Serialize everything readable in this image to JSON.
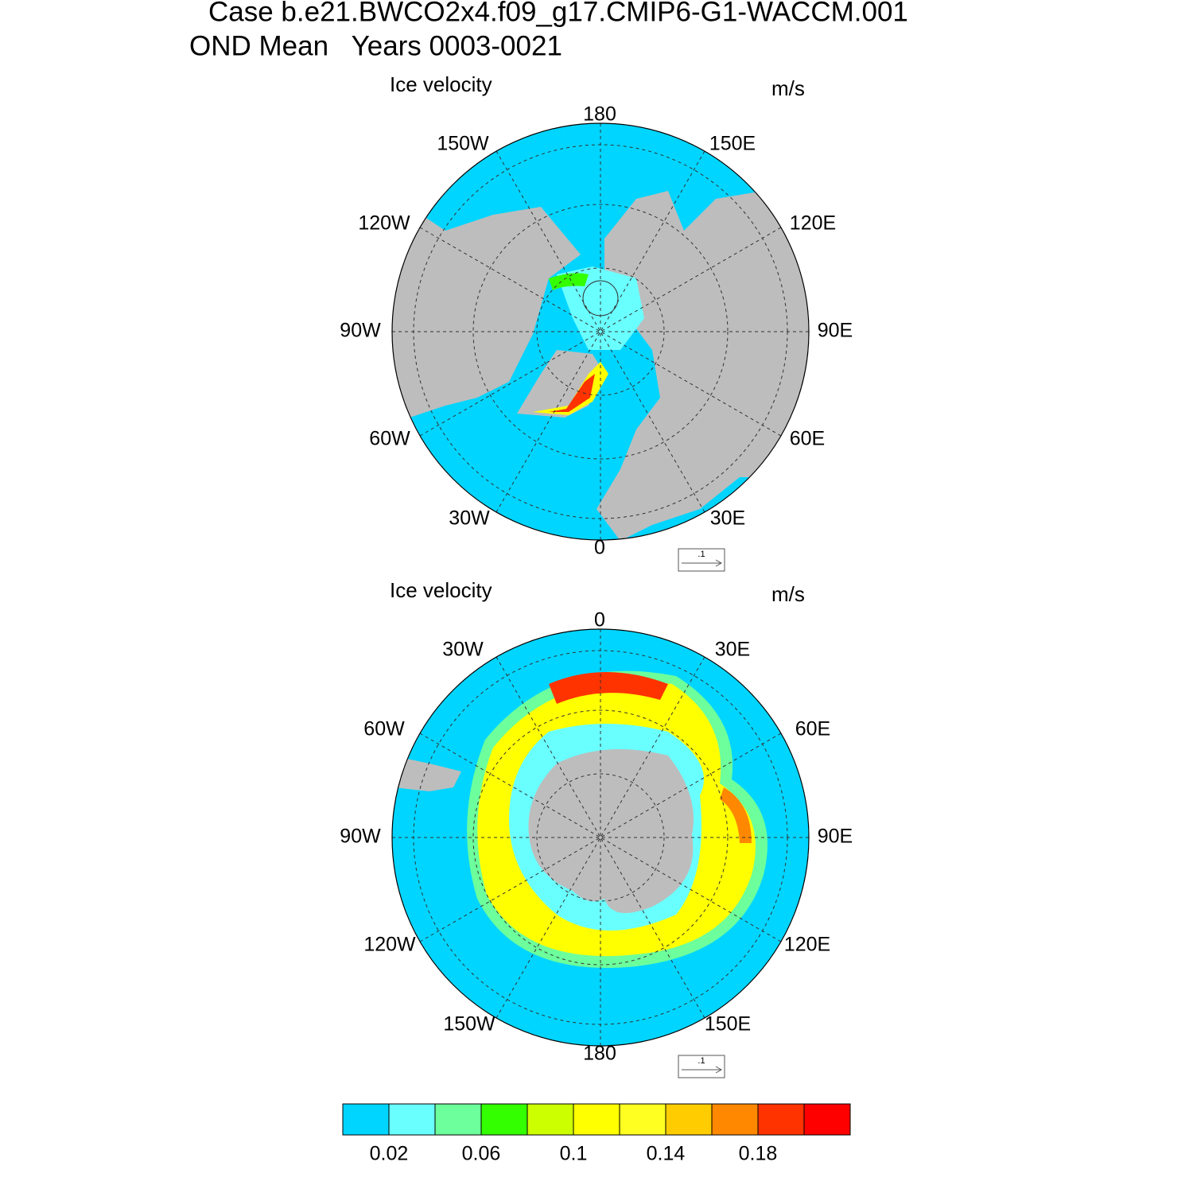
{
  "title_lines": [
    "Case b.e21.BWCO2x4.f09_g17.CMIP6-G1-WACCM.001",
    "OND Mean   Years 0003-0021"
  ],
  "panels": [
    {
      "title": "Ice velocity",
      "units": "m/s",
      "ref_label": ".1",
      "lon_labels": [
        "180",
        "150W",
        "150E",
        "120W",
        "120E",
        "90W",
        "90E",
        "60W",
        "60E",
        "30W",
        "30E",
        "0"
      ]
    },
    {
      "title": "Ice velocity",
      "units": "m/s",
      "ref_label": ".1",
      "lon_labels": [
        "0",
        "30W",
        "30E",
        "60W",
        "60E",
        "90W",
        "90E",
        "120W",
        "120E",
        "150W",
        "150E",
        "180"
      ]
    }
  ],
  "colorbar": {
    "boundaries": [
      0.02,
      0.04,
      0.06,
      0.08,
      0.1,
      0.12,
      0.14,
      0.16,
      0.18,
      0.2
    ],
    "colors": [
      "#00d5ff",
      "#6affff",
      "#6cff9c",
      "#33ff00",
      "#ccff00",
      "#ffff00",
      "#ffff22",
      "#ffcc00",
      "#ff8800",
      "#ff3300",
      "#ff0000"
    ],
    "ticks": [
      0.02,
      0.06,
      0.1,
      0.14,
      0.18
    ]
  }
}
